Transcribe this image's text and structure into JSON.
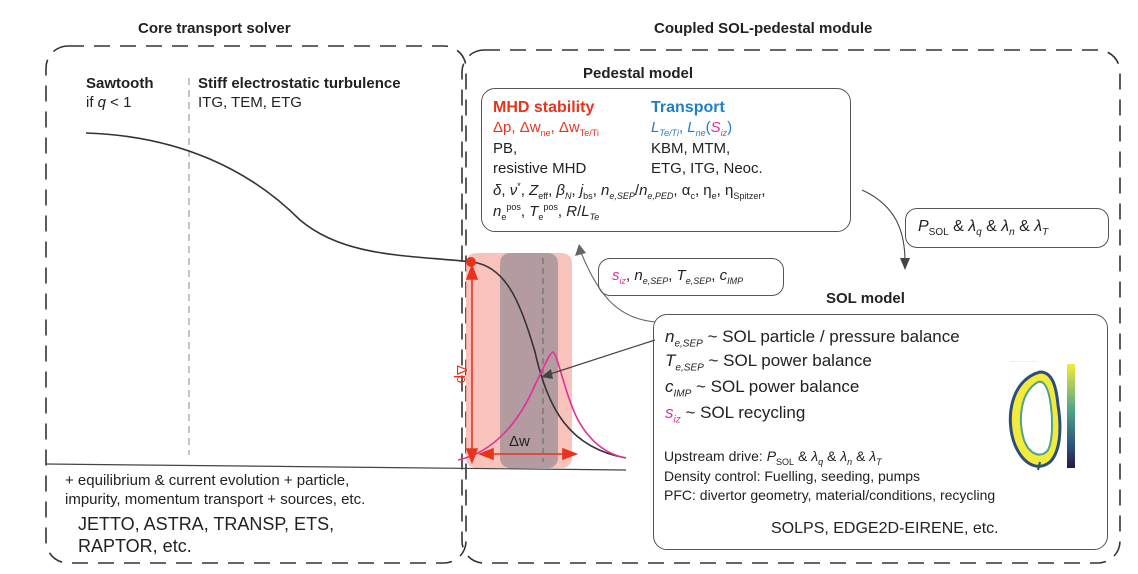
{
  "headers": {
    "core": "Core transport solver",
    "coupled": "Coupled SOL-pedestal module",
    "pedestal": "Pedestal model",
    "sol": "SOL model"
  },
  "core": {
    "sawtooth_title": "Sawtooth",
    "sawtooth_cond": "if q < 1",
    "stiff_title": "Stiff electrostatic turbulence",
    "stiff_modes": "ITG, TEM, ETG",
    "extras_line1": "+ equilibrium & current evolution + particle,",
    "extras_line2": "impurity, momentum transport + sources, etc.",
    "codes_line1": "JETTO, ASTRA, TRANSP, ETS,",
    "codes_line2": "RAPTOR, etc."
  },
  "pedestal": {
    "mhd_title": "MHD stability",
    "mhd_red": "Δp, Δwne, ΔwTe/Ti",
    "mhd_line2": "PB,",
    "mhd_line3": "resistive MHD",
    "transport_title": "Transport",
    "transport_line1": "LTe/Ti, Lne(Siz)",
    "transport_line2": "KBM, MTM,",
    "transport_line3": "ETG, ITG, Neoc.",
    "params_line1": "δ, ν*, Zeff, βN, jbs, ne,SEP/ne,PED, αc, ηe, ηSpitzer,",
    "params_line2": "nepos, Tepos, R/LTe"
  },
  "feedback_box": "siz, ne,SEP, Te,SEP, cIMP",
  "upstream_box": "PSOL & λq & λn & λT",
  "sol": {
    "items": [
      {
        "var": "ne,SEP",
        "desc": "~ SOL particle / pressure balance"
      },
      {
        "var": "Te,SEP",
        "desc": "~ SOL power balance"
      },
      {
        "var": "cIMP",
        "desc": "~ SOL power balance"
      },
      {
        "var": "siz",
        "desc": "~ SOL recycling"
      }
    ],
    "upstream": "Upstream drive: PSOL & λq & λn & λT",
    "density": "Density control: Fuelling, seeding, pumps",
    "pfc": "PFC: divertor geometry, material/conditions, recycling",
    "codes": "SOLPS, EDGE2D-EIRENE, etc."
  },
  "plot": {
    "dp_label": "Δp",
    "dw_label": "Δw"
  },
  "colors": {
    "red": "#e8341f",
    "blue": "#1f7fc9",
    "pink": "#e0309a",
    "pedestal_band": "#f6b8ae",
    "gray_band": "#9c8e96"
  },
  "icons": [
    "tokamak-cross-section-icon",
    "colorbar-icon"
  ]
}
